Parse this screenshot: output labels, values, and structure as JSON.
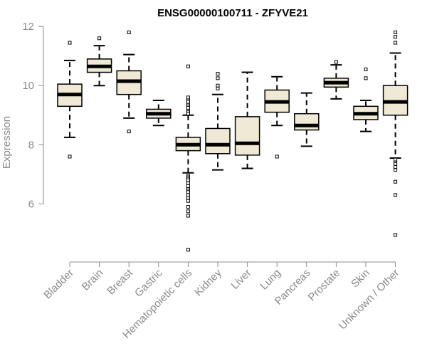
{
  "chart_data": {
    "type": "boxplot",
    "title": "ENSG00000100711 - ZFYVE21",
    "xlabel": "",
    "ylabel": "Expression",
    "ylim": [
      4.3,
      12.1
    ],
    "yticks": [
      6,
      8,
      10,
      12
    ],
    "grid": false,
    "box_fill": "#efe9d5",
    "box_stroke": "#000000",
    "axis_color": "#8a8a8a",
    "categories": [
      "Bladder",
      "Brain",
      "Breast",
      "Gastric",
      "Hematopoietic cells",
      "Kidney",
      "Liver",
      "Lung",
      "Pancreas",
      "Prostate",
      "Skin",
      "Unknown / Other"
    ],
    "boxes": [
      {
        "name": "Bladder",
        "whisker_low": 8.25,
        "q1": 9.3,
        "median": 9.7,
        "q3": 10.05,
        "whisker_high": 10.85,
        "outliers": [
          11.45,
          7.6
        ]
      },
      {
        "name": "Brain",
        "whisker_low": 10.0,
        "q1": 10.45,
        "median": 10.65,
        "q3": 10.9,
        "whisker_high": 11.35,
        "outliers": [
          11.6
        ]
      },
      {
        "name": "Breast",
        "whisker_low": 8.9,
        "q1": 9.7,
        "median": 10.15,
        "q3": 10.5,
        "whisker_high": 11.05,
        "outliers": [
          11.8,
          8.45
        ]
      },
      {
        "name": "Gastric",
        "whisker_low": 8.65,
        "q1": 8.9,
        "median": 9.05,
        "q3": 9.2,
        "whisker_high": 9.5,
        "outliers": []
      },
      {
        "name": "Hematopoietic cells",
        "whisker_low": 7.05,
        "q1": 7.8,
        "median": 8.0,
        "q3": 8.25,
        "whisker_high": 9.0,
        "outliers": [
          10.65,
          9.6,
          9.5,
          9.45,
          9.35,
          9.3,
          9.25,
          9.15,
          9.1,
          9.05,
          6.95,
          6.9,
          6.85,
          6.8,
          6.7,
          6.6,
          6.5,
          6.45,
          6.4,
          6.3,
          6.2,
          6.1,
          5.9,
          5.75,
          5.6,
          4.45
        ]
      },
      {
        "name": "Kidney",
        "whisker_low": 7.15,
        "q1": 7.7,
        "median": 8.0,
        "q3": 8.55,
        "whisker_high": 9.7,
        "outliers": [
          10.4,
          10.25,
          10.0,
          9.9
        ]
      },
      {
        "name": "Liver",
        "whisker_low": 7.2,
        "q1": 7.65,
        "median": 8.05,
        "q3": 8.95,
        "whisker_high": 10.45,
        "outliers": []
      },
      {
        "name": "Lung",
        "whisker_low": 8.65,
        "q1": 9.1,
        "median": 9.45,
        "q3": 9.85,
        "whisker_high": 10.3,
        "outliers": [
          7.6
        ]
      },
      {
        "name": "Pancreas",
        "whisker_low": 7.95,
        "q1": 8.5,
        "median": 8.65,
        "q3": 9.05,
        "whisker_high": 9.75,
        "outliers": []
      },
      {
        "name": "Prostate",
        "whisker_low": 9.55,
        "q1": 9.95,
        "median": 10.1,
        "q3": 10.25,
        "whisker_high": 10.7,
        "outliers": [
          10.8
        ]
      },
      {
        "name": "Skin",
        "whisker_low": 8.45,
        "q1": 8.85,
        "median": 9.05,
        "q3": 9.3,
        "whisker_high": 9.5,
        "outliers": [
          10.55,
          10.25
        ]
      },
      {
        "name": "Unknown / Other",
        "whisker_low": 7.55,
        "q1": 9.0,
        "median": 9.45,
        "q3": 10.0,
        "whisker_high": 11.1,
        "outliers": [
          11.8,
          11.65,
          11.45,
          7.5,
          7.4,
          7.35,
          7.25,
          7.15,
          6.75,
          6.3,
          4.95
        ]
      }
    ]
  }
}
